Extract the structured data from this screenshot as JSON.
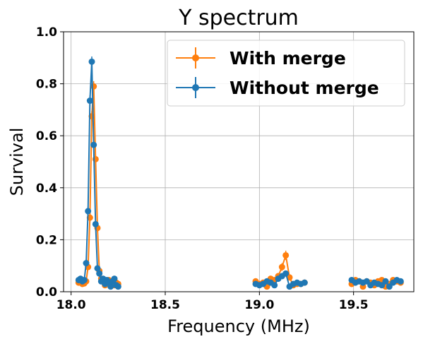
{
  "chart_data": {
    "type": "line",
    "title": "Y spectrum",
    "xlabel": "Frequency (MHz)",
    "ylabel": "Survival",
    "xlim": [
      17.96,
      19.82
    ],
    "ylim": [
      0.0,
      1.0
    ],
    "xticks": [
      18.0,
      18.5,
      19.0,
      19.5
    ],
    "xtick_labels": [
      "18.0",
      "18.5",
      "19.0",
      "19.5"
    ],
    "yticks": [
      0.0,
      0.2,
      0.4,
      0.6,
      0.8,
      1.0
    ],
    "ytick_labels": [
      "0.0",
      "0.2",
      "0.4",
      "0.6",
      "0.8",
      "1.0"
    ],
    "grid": true,
    "legend_position": "top-right",
    "series": [
      {
        "name": "With merge",
        "color": "#ff7f0e",
        "segments": [
          {
            "x": [
              18.04,
              18.05,
              18.06,
              18.07,
              18.08,
              18.09,
              18.1,
              18.11,
              18.12,
              18.13,
              18.14,
              18.15,
              18.16,
              18.17,
              18.18,
              18.19,
              18.2,
              18.21,
              18.22,
              18.23,
              18.24,
              18.25
            ],
            "y": [
              0.035,
              0.04,
              0.03,
              0.032,
              0.04,
              0.095,
              0.285,
              0.675,
              0.79,
              0.51,
              0.245,
              0.08,
              0.05,
              0.04,
              0.025,
              0.03,
              0.045,
              0.04,
              0.03,
              0.025,
              0.035,
              0.03
            ],
            "yerr": [
              0.008,
              0.008,
              0.008,
              0.008,
              0.008,
              0.012,
              0.018,
              0.02,
              0.02,
              0.018,
              0.015,
              0.01,
              0.008,
              0.008,
              0.008,
              0.008,
              0.008,
              0.008,
              0.008,
              0.008,
              0.008,
              0.008
            ]
          },
          {
            "x": [
              18.98,
              19.0,
              19.02,
              19.04,
              19.06,
              19.08,
              19.1,
              19.12,
              19.14,
              19.16,
              19.18,
              19.2,
              19.22,
              19.24
            ],
            "y": [
              0.04,
              0.03,
              0.035,
              0.02,
              0.05,
              0.045,
              0.06,
              0.095,
              0.14,
              0.055,
              0.025,
              0.03,
              0.03,
              0.035
            ],
            "yerr": [
              0.008,
              0.008,
              0.008,
              0.008,
              0.01,
              0.01,
              0.012,
              0.015,
              0.018,
              0.01,
              0.008,
              0.008,
              0.008,
              0.008
            ]
          },
          {
            "x": [
              19.49,
              19.51,
              19.53,
              19.55,
              19.57,
              19.59,
              19.61,
              19.63,
              19.65,
              19.67,
              19.69,
              19.71,
              19.73,
              19.75
            ],
            "y": [
              0.03,
              0.045,
              0.04,
              0.02,
              0.04,
              0.035,
              0.025,
              0.04,
              0.045,
              0.02,
              0.03,
              0.045,
              0.04,
              0.035
            ],
            "yerr": [
              0.008,
              0.008,
              0.008,
              0.008,
              0.008,
              0.008,
              0.008,
              0.008,
              0.008,
              0.008,
              0.008,
              0.008,
              0.008,
              0.008
            ]
          }
        ]
      },
      {
        "name": "Without merge",
        "color": "#1f77b4",
        "segments": [
          {
            "x": [
              18.04,
              18.05,
              18.06,
              18.07,
              18.08,
              18.09,
              18.1,
              18.11,
              18.12,
              18.13,
              18.14,
              18.15,
              18.16,
              18.17,
              18.18,
              18.19,
              18.2,
              18.21,
              18.22,
              18.23,
              18.24,
              18.25
            ],
            "y": [
              0.045,
              0.05,
              0.04,
              0.045,
              0.11,
              0.31,
              0.735,
              0.885,
              0.565,
              0.26,
              0.09,
              0.07,
              0.04,
              0.05,
              0.03,
              0.045,
              0.035,
              0.02,
              0.04,
              0.05,
              0.025,
              0.02
            ],
            "yerr": [
              0.008,
              0.008,
              0.008,
              0.008,
              0.012,
              0.018,
              0.02,
              0.02,
              0.02,
              0.016,
              0.01,
              0.01,
              0.008,
              0.008,
              0.008,
              0.008,
              0.008,
              0.008,
              0.008,
              0.008,
              0.008,
              0.008
            ]
          },
          {
            "x": [
              18.98,
              19.0,
              19.02,
              19.04,
              19.06,
              19.08,
              19.1,
              19.12,
              19.14,
              19.16,
              19.18,
              19.2,
              19.22,
              19.24
            ],
            "y": [
              0.03,
              0.025,
              0.03,
              0.04,
              0.035,
              0.025,
              0.05,
              0.06,
              0.07,
              0.02,
              0.03,
              0.035,
              0.03,
              0.035
            ],
            "yerr": [
              0.008,
              0.008,
              0.008,
              0.008,
              0.008,
              0.008,
              0.008,
              0.01,
              0.01,
              0.008,
              0.008,
              0.008,
              0.008,
              0.008
            ]
          },
          {
            "x": [
              19.49,
              19.51,
              19.53,
              19.55,
              19.57,
              19.59,
              19.61,
              19.63,
              19.65,
              19.67,
              19.69,
              19.71,
              19.73,
              19.75
            ],
            "y": [
              0.045,
              0.035,
              0.04,
              0.035,
              0.04,
              0.025,
              0.035,
              0.03,
              0.025,
              0.04,
              0.02,
              0.035,
              0.045,
              0.04
            ],
            "yerr": [
              0.008,
              0.008,
              0.008,
              0.008,
              0.008,
              0.008,
              0.008,
              0.008,
              0.008,
              0.008,
              0.008,
              0.008,
              0.008,
              0.008
            ]
          }
        ]
      }
    ]
  }
}
